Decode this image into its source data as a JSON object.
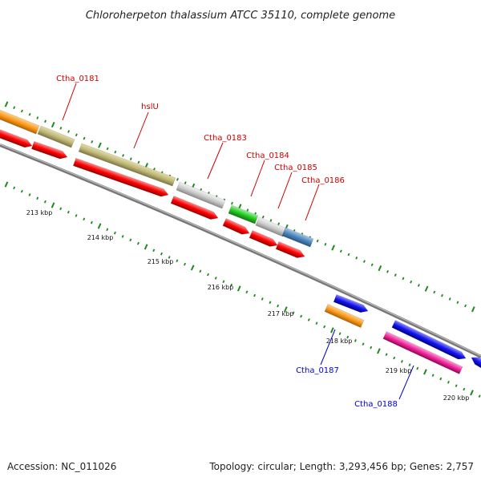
{
  "title": "Chloroherpeton thalassium ATCC 35110, complete genome",
  "accession": "Accession: NC_011026",
  "topology": "Topology: circular; Length: 3,293,456 bp; Genes: 2,757",
  "colors": {
    "backbone": "#808080",
    "tick": "#1e8a1e",
    "top_label": "#cc0000",
    "bottom_label": "#0000cc"
  },
  "ruler": [
    {
      "label": "213 kbp"
    },
    {
      "label": "214 kbp"
    },
    {
      "label": "215 kbp"
    },
    {
      "label": "216 kbp"
    },
    {
      "label": "217 kbp"
    },
    {
      "label": "218 kbp"
    },
    {
      "label": "219 kbp"
    },
    {
      "label": "220 kbp"
    }
  ],
  "gene_labels": [
    {
      "label": "Ctha_0181"
    },
    {
      "label": "hslU"
    },
    {
      "label": "Ctha_0183"
    },
    {
      "label": "Ctha_0184"
    },
    {
      "label": "Ctha_0185"
    },
    {
      "label": "Ctha_0186"
    },
    {
      "label": "Ctha_0187"
    },
    {
      "label": "Ctha_0188"
    }
  ]
}
